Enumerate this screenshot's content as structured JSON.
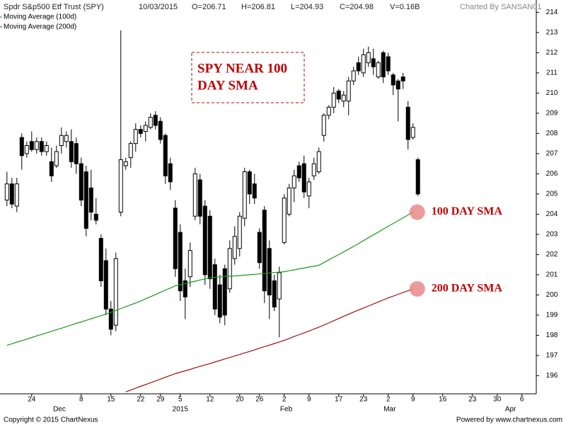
{
  "chart_data": {
    "type": "candlestick",
    "title": "Spdr S&p500 Etf Trust (SPY)",
    "header": [
      "10/03/2015",
      "O=206.71",
      "H=206.81",
      "L=204.93",
      "C=204.98",
      "V=0.16B"
    ],
    "credit": "Charted By SANSAN01",
    "footer_left": "Copyright © 2015 ChartNexus",
    "footer_right": "Powered by www.chartnexus.com",
    "annotation_box": [
      "SPY NEAR 100",
      "DAY SMA"
    ],
    "open": [
      204.7,
      205.5,
      204.4,
      207.8,
      207.0,
      207.6,
      207.2,
      207.6,
      207.1,
      206.6,
      206.4,
      207.4,
      207.6,
      207.6,
      207.5,
      206.5,
      206.1,
      205.3,
      204.0,
      202.8,
      201.7,
      199.3,
      198.5,
      204.1,
      206.4,
      206.8,
      207.5,
      208.2,
      208.1,
      208.3,
      208.9,
      208.6,
      207.9,
      206.5,
      204.3,
      203.1,
      200.7,
      200.9,
      203.9,
      205.7,
      204.4,
      203.9,
      201.5,
      200.5,
      201.3,
      200.3,
      201.8,
      202.3,
      203.8,
      206.1,
      205.5,
      203.1,
      204.2,
      202.3,
      200.7,
      199.8,
      202.6,
      204.0,
      205.3,
      206.4,
      206.5,
      204.9,
      205.9,
      206.1,
      207.9,
      208.9,
      209.3,
      210.1,
      209.6,
      209.6,
      210.6,
      211.5,
      211.0,
      211.5,
      211.7,
      210.8,
      212.0,
      211.8,
      210.9,
      210.6,
      210.8,
      209.3,
      207.8,
      206.7
    ],
    "high": [
      206.1,
      205.8,
      205.8,
      208.0,
      207.6,
      208.1,
      207.8,
      207.8,
      207.6,
      207.3,
      207.4,
      208.3,
      208.1,
      208.2,
      207.8,
      206.8,
      206.4,
      206.2,
      204.8,
      203.0,
      202.3,
      199.7,
      202.1,
      213.1,
      206.8,
      207.6,
      208.5,
      208.4,
      208.6,
      209.0,
      209.1,
      208.8,
      208.0,
      206.8,
      204.7,
      203.5,
      201.3,
      202.6,
      206.3,
      206.0,
      204.7,
      204.2,
      201.8,
      201.0,
      201.5,
      202.7,
      203.4,
      204.1,
      206.3,
      206.2,
      206.0,
      203.3,
      204.4,
      202.7,
      201.0,
      201.4,
      205.0,
      205.5,
      206.2,
      206.6,
      206.9,
      205.8,
      206.8,
      207.3,
      209.0,
      209.4,
      210.3,
      210.2,
      210.1,
      210.8,
      211.3,
      211.8,
      212.2,
      212.3,
      212.2,
      211.6,
      212.1,
      212.0,
      211.0,
      210.7,
      211.0,
      209.6,
      208.5,
      206.8
    ],
    "low": [
      204.4,
      204.3,
      204.1,
      206.2,
      206.8,
      207.1,
      207.0,
      206.9,
      206.9,
      205.6,
      206.3,
      207.0,
      207.3,
      206.3,
      206.0,
      204.4,
      202.9,
      203.7,
      203.5,
      200.4,
      199.0,
      198.0,
      198.2,
      203.9,
      206.2,
      206.3,
      207.1,
      207.8,
      207.6,
      208.2,
      208.2,
      207.5,
      205.5,
      205.2,
      200.9,
      199.7,
      198.8,
      200.4,
      203.7,
      203.5,
      200.5,
      200.3,
      199.0,
      198.6,
      198.5,
      200.1,
      201.5,
      201.9,
      203.4,
      204.5,
      204.5,
      201.3,
      199.6,
      198.8,
      199.2,
      197.9,
      202.5,
      203.9,
      204.6,
      205.6,
      204.8,
      204.3,
      205.7,
      206.0,
      207.6,
      208.7,
      209.0,
      209.5,
      209.3,
      208.9,
      210.4,
      210.9,
      210.8,
      211.3,
      210.9,
      210.7,
      210.5,
      210.9,
      209.9,
      208.6,
      210.2,
      207.2,
      207.7,
      204.9
    ],
    "close": [
      205.5,
      204.5,
      205.5,
      206.9,
      207.4,
      207.2,
      207.6,
      207.1,
      207.4,
      205.9,
      207.1,
      207.9,
      207.9,
      206.6,
      206.5,
      204.7,
      203.3,
      204.1,
      203.7,
      200.7,
      199.3,
      198.3,
      201.8,
      206.7,
      206.6,
      207.5,
      208.2,
      208.0,
      208.4,
      208.8,
      208.4,
      207.7,
      205.9,
      205.6,
      201.3,
      200.2,
      199.9,
      202.2,
      206.0,
      203.9,
      201.0,
      200.8,
      199.3,
      198.9,
      199.0,
      202.3,
      202.9,
      203.9,
      206.1,
      205.0,
      204.8,
      201.6,
      200.2,
      200.0,
      199.4,
      201.1,
      204.8,
      205.3,
      205.9,
      205.8,
      205.1,
      205.6,
      206.5,
      207.1,
      208.9,
      209.3,
      210.0,
      209.7,
      209.9,
      210.6,
      211.1,
      211.1,
      211.9,
      212.0,
      211.3,
      211.5,
      210.8,
      211.1,
      210.4,
      210.2,
      210.6,
      207.7,
      208.3,
      205.0
    ],
    "up_color": "#ffffff",
    "down_color": "#000000",
    "series": [
      {
        "name": "Moving Average (100d)",
        "color": "#1a9a1a",
        "values": [
          197.5,
          197.58,
          197.66,
          197.73,
          197.81,
          197.89,
          197.97,
          198.04,
          198.12,
          198.2,
          198.28,
          198.35,
          198.43,
          198.51,
          198.59,
          198.66,
          198.74,
          198.82,
          198.9,
          198.97,
          199.05,
          199.14,
          199.23,
          199.33,
          199.42,
          199.51,
          199.6,
          199.7,
          199.81,
          199.91,
          200.02,
          200.13,
          200.24,
          200.34,
          200.45,
          200.51,
          200.56,
          200.62,
          200.68,
          200.74,
          200.79,
          200.85,
          200.87,
          200.89,
          200.91,
          200.93,
          200.94,
          200.96,
          200.98,
          201.0,
          201.02,
          201.04,
          201.06,
          201.09,
          201.11,
          201.13,
          201.15,
          201.2,
          201.24,
          201.29,
          201.33,
          201.38,
          201.42,
          201.47,
          201.6,
          201.74,
          201.87,
          202.0,
          202.13,
          202.27,
          202.4,
          202.54,
          202.69,
          202.83,
          202.97,
          203.11,
          203.26,
          203.4,
          203.54,
          203.68,
          203.82,
          203.96,
          204.1,
          null
        ],
        "note_label": "100 DAY SMA"
      },
      {
        "name": "Moving Average (200d)",
        "color": "#a01010",
        "values": [
          null,
          null,
          null,
          null,
          null,
          null,
          null,
          null,
          null,
          null,
          null,
          null,
          null,
          null,
          null,
          null,
          null,
          null,
          null,
          null,
          null,
          null,
          null,
          null,
          195.2,
          195.29,
          195.38,
          195.47,
          195.56,
          195.65,
          195.74,
          195.83,
          195.92,
          196.01,
          196.1,
          196.17,
          196.24,
          196.31,
          196.39,
          196.46,
          196.53,
          196.6,
          196.68,
          196.75,
          196.83,
          196.9,
          196.98,
          197.05,
          197.13,
          197.2,
          197.28,
          197.36,
          197.44,
          197.51,
          197.59,
          197.67,
          197.75,
          197.84,
          197.94,
          198.03,
          198.12,
          198.21,
          198.31,
          198.4,
          198.51,
          198.61,
          198.72,
          198.83,
          198.94,
          199.04,
          199.15,
          199.25,
          199.35,
          199.45,
          199.55,
          199.65,
          199.75,
          199.85,
          199.94,
          200.03,
          200.12,
          200.21,
          200.3,
          null
        ],
        "note_label": "200 DAY SMA"
      }
    ],
    "xlim": [
      -1.4,
      106.9
    ],
    "xticks": [
      {
        "value": 5,
        "label": "24"
      },
      {
        "value": 15,
        "label": "8"
      },
      {
        "value": 21,
        "label": "15"
      },
      {
        "value": 27,
        "label": "22"
      },
      {
        "value": 31,
        "label": "29"
      },
      {
        "value": 35,
        "label": "5"
      },
      {
        "value": 41,
        "label": "12"
      },
      {
        "value": 47,
        "label": "20"
      },
      {
        "value": 51,
        "label": "26"
      },
      {
        "value": 56,
        "label": "2"
      },
      {
        "value": 61,
        "label": "9"
      },
      {
        "value": 67,
        "label": "17"
      },
      {
        "value": 72,
        "label": "23"
      },
      {
        "value": 77,
        "label": "2"
      },
      {
        "value": 82,
        "label": "9"
      },
      {
        "value": 88,
        "label": "16"
      },
      {
        "value": 94,
        "label": "23"
      },
      {
        "value": 99,
        "label": "30"
      },
      {
        "value": 104,
        "label": "6"
      }
    ],
    "month_ticks": [
      {
        "value": 10.6,
        "label": "Dec"
      },
      {
        "value": 35,
        "label": "2015"
      },
      {
        "value": 56.4,
        "label": "Feb"
      },
      {
        "value": 77.3,
        "label": "Mar"
      },
      {
        "value": 101.7,
        "label": "Apr"
      }
    ],
    "ylim": [
      195.1,
      214.4
    ],
    "yticks": [
      196,
      197,
      198,
      199,
      200,
      201,
      202,
      203,
      204,
      205,
      206,
      207,
      208,
      209,
      210,
      211,
      212,
      213,
      214
    ]
  }
}
